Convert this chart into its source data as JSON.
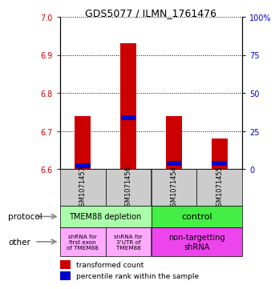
{
  "title": "GDS5077 / ILMN_1761476",
  "samples": [
    "GSM1071457",
    "GSM1071456",
    "GSM1071454",
    "GSM1071455"
  ],
  "red_values": [
    6.74,
    6.93,
    6.74,
    6.68
  ],
  "blue_values": [
    6.61,
    6.735,
    6.615,
    6.615
  ],
  "ylim_left": [
    6.6,
    7.0
  ],
  "yticks_left": [
    6.6,
    6.7,
    6.8,
    6.9,
    7.0
  ],
  "yticks_right": [
    0,
    25,
    50,
    75,
    100
  ],
  "right_ytick_labels": [
    "0",
    "25",
    "50",
    "75",
    "100%"
  ],
  "left_color": "#cc0000",
  "right_color": "#0000cc",
  "bar_color": "#cc0000",
  "blue_marker_color": "#0000cc",
  "protocol_left_label": "TMEM88 depletion",
  "protocol_right_label": "control",
  "other_left1": "shRNA for\nfirst exon\nof TMEM88",
  "other_left2": "shRNA for\n3'UTR of\nTMEM88",
  "other_right": "non-targetting\nshRNA",
  "protocol_left_color": "#aaffaa",
  "protocol_right_color": "#44ee44",
  "other_left_color": "#ffaaff",
  "other_right_color": "#ee44ee",
  "legend_red": "transformed count",
  "legend_blue": "percentile rank within the sample",
  "label_protocol": "protocol",
  "label_other": "other",
  "sample_box_color": "#cccccc"
}
